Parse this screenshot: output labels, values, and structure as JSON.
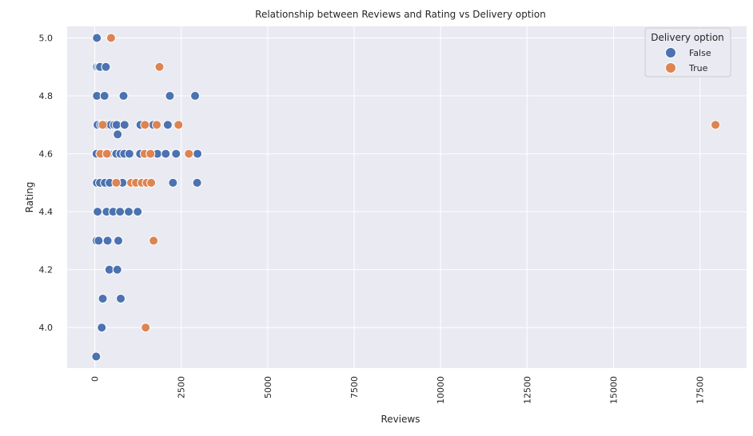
{
  "chart_data": {
    "type": "scatter",
    "title": "Relationship between Reviews and Rating vs Delivery option",
    "xlabel": "Reviews",
    "ylabel": "Rating",
    "xlim": [
      -800,
      18850
    ],
    "ylim": [
      3.86,
      5.04
    ],
    "xticks": [
      0,
      2500,
      5000,
      7500,
      10000,
      12500,
      15000,
      17500
    ],
    "xtick_labels": [
      "0",
      "2500",
      "5000",
      "7500",
      "10000",
      "12500",
      "15000",
      "17500"
    ],
    "yticks": [
      4.0,
      4.2,
      4.4,
      4.6,
      4.8,
      5.0
    ],
    "ytick_labels": [
      "4.0",
      "4.2",
      "4.4",
      "4.6",
      "4.8",
      "5.0"
    ],
    "grid": true,
    "legend": {
      "title": "Delivery option",
      "placement": "top-right"
    },
    "colors": {
      "False": "#4c72b0",
      "True": "#dd8452",
      "background": "#eaeaf2",
      "grid": "#ffffff"
    },
    "series": [
      {
        "name": "False",
        "color": "#4c72b0",
        "points": [
          {
            "x": 60,
            "y": 5.0
          },
          {
            "x": 60,
            "y": 4.9
          },
          {
            "x": 110,
            "y": 4.9
          },
          {
            "x": 150,
            "y": 4.9
          },
          {
            "x": 320,
            "y": 4.9
          },
          {
            "x": 60,
            "y": 4.8
          },
          {
            "x": 280,
            "y": 4.8
          },
          {
            "x": 830,
            "y": 4.8
          },
          {
            "x": 2170,
            "y": 4.8
          },
          {
            "x": 2900,
            "y": 4.8
          },
          {
            "x": 80,
            "y": 4.7
          },
          {
            "x": 180,
            "y": 4.7
          },
          {
            "x": 300,
            "y": 4.7
          },
          {
            "x": 460,
            "y": 4.7
          },
          {
            "x": 560,
            "y": 4.7
          },
          {
            "x": 630,
            "y": 4.7
          },
          {
            "x": 860,
            "y": 4.7
          },
          {
            "x": 1320,
            "y": 4.7
          },
          {
            "x": 1690,
            "y": 4.7
          },
          {
            "x": 2110,
            "y": 4.7
          },
          {
            "x": 660,
            "y": 4.667
          },
          {
            "x": 50,
            "y": 4.6
          },
          {
            "x": 290,
            "y": 4.6
          },
          {
            "x": 400,
            "y": 4.6
          },
          {
            "x": 620,
            "y": 4.6
          },
          {
            "x": 740,
            "y": 4.6
          },
          {
            "x": 850,
            "y": 4.6
          },
          {
            "x": 1000,
            "y": 4.6
          },
          {
            "x": 1310,
            "y": 4.6
          },
          {
            "x": 1460,
            "y": 4.6
          },
          {
            "x": 1810,
            "y": 4.6
          },
          {
            "x": 2050,
            "y": 4.6
          },
          {
            "x": 2350,
            "y": 4.6
          },
          {
            "x": 2970,
            "y": 4.6
          },
          {
            "x": 60,
            "y": 4.5
          },
          {
            "x": 150,
            "y": 4.5
          },
          {
            "x": 290,
            "y": 4.5
          },
          {
            "x": 430,
            "y": 4.5
          },
          {
            "x": 800,
            "y": 4.5
          },
          {
            "x": 1250,
            "y": 4.5
          },
          {
            "x": 2260,
            "y": 4.5
          },
          {
            "x": 2960,
            "y": 4.5
          },
          {
            "x": 80,
            "y": 4.4
          },
          {
            "x": 340,
            "y": 4.4
          },
          {
            "x": 530,
            "y": 4.4
          },
          {
            "x": 730,
            "y": 4.4
          },
          {
            "x": 980,
            "y": 4.4
          },
          {
            "x": 1240,
            "y": 4.4
          },
          {
            "x": 50,
            "y": 4.3
          },
          {
            "x": 110,
            "y": 4.3
          },
          {
            "x": 370,
            "y": 4.3
          },
          {
            "x": 680,
            "y": 4.3
          },
          {
            "x": 420,
            "y": 4.2
          },
          {
            "x": 650,
            "y": 4.2
          },
          {
            "x": 230,
            "y": 4.1
          },
          {
            "x": 750,
            "y": 4.1
          },
          {
            "x": 200,
            "y": 4.0
          },
          {
            "x": 40,
            "y": 3.9
          }
        ]
      },
      {
        "name": "True",
        "color": "#dd8452",
        "points": [
          {
            "x": 470,
            "y": 5.0
          },
          {
            "x": 1870,
            "y": 4.9
          },
          {
            "x": 230,
            "y": 4.7
          },
          {
            "x": 1450,
            "y": 4.7
          },
          {
            "x": 1790,
            "y": 4.7
          },
          {
            "x": 2420,
            "y": 4.7
          },
          {
            "x": 17950,
            "y": 4.7
          },
          {
            "x": 160,
            "y": 4.6
          },
          {
            "x": 350,
            "y": 4.6
          },
          {
            "x": 1440,
            "y": 4.6
          },
          {
            "x": 1610,
            "y": 4.6
          },
          {
            "x": 2720,
            "y": 4.6
          },
          {
            "x": 620,
            "y": 4.5
          },
          {
            "x": 1050,
            "y": 4.5
          },
          {
            "x": 1190,
            "y": 4.5
          },
          {
            "x": 1360,
            "y": 4.5
          },
          {
            "x": 1500,
            "y": 4.5
          },
          {
            "x": 1630,
            "y": 4.5
          },
          {
            "x": 1700,
            "y": 4.3
          },
          {
            "x": 1470,
            "y": 4.0
          }
        ]
      }
    ]
  }
}
